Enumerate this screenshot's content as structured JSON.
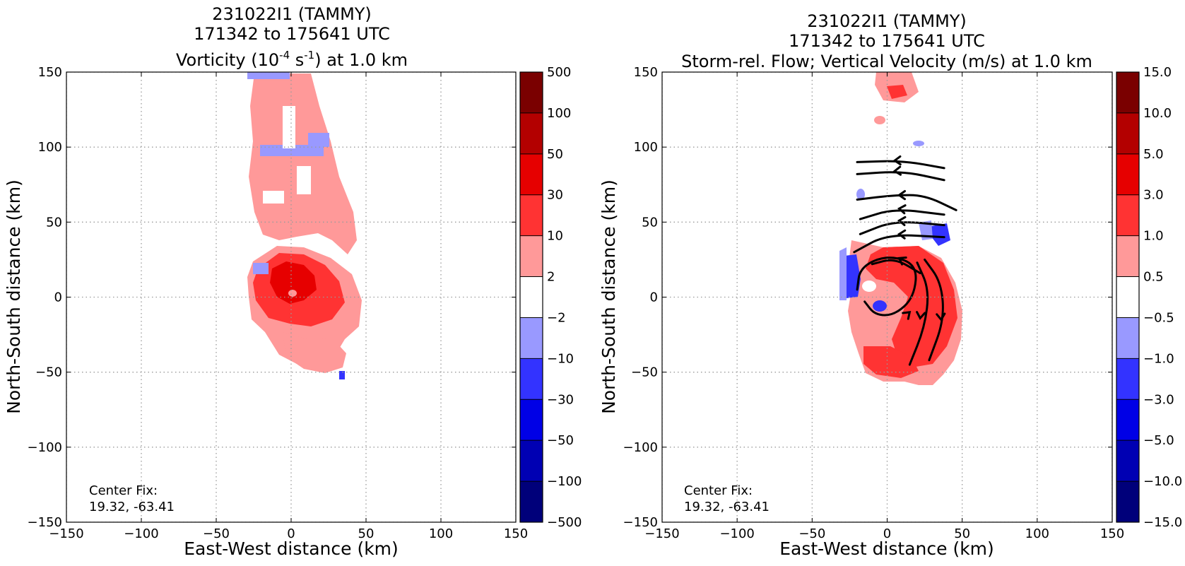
{
  "chart_data": [
    {
      "type": "heatmap",
      "title_lines": [
        "231022I1 (TAMMY)",
        "171342 to 175641 UTC"
      ],
      "title_var": {
        "pre": "Vorticity (10",
        "sup1": "-4",
        "mid": " s",
        "sup2": "-1",
        "post": ") at 1.0 km"
      },
      "xlabel": "East-West distance (km)",
      "ylabel": "North-South distance (km)",
      "xlim": [
        -150,
        150
      ],
      "ylim": [
        -150,
        150
      ],
      "xticks": [
        -150,
        -100,
        -50,
        0,
        50,
        100,
        150
      ],
      "yticks": [
        -150,
        -100,
        -50,
        0,
        50,
        100,
        150
      ],
      "grid": true,
      "annotation": [
        "Center Fix:",
        "19.32, -63.41"
      ],
      "colorbar": {
        "labels": [
          "500",
          "100",
          "50",
          "30",
          "10",
          "2",
          "−2",
          "−10",
          "−30",
          "−50",
          "−100",
          "−500"
        ],
        "colors": [
          "#7a0000",
          "#b30000",
          "#e60000",
          "#ff3333",
          "#ff9999",
          "#ffffff",
          "#9999ff",
          "#3333ff",
          "#0000e6",
          "#0000b3",
          "#00007a"
        ]
      },
      "field_patches": [
        {
          "x": -2,
          "y": 5,
          "rx": 30,
          "ry": 22,
          "level": "10 to 30"
        },
        {
          "x": 0,
          "y": 5,
          "rx": 16,
          "ry": 14,
          "level": "30 to 50"
        },
        {
          "x": 15,
          "y": 115,
          "rx": 16,
          "ry": 35,
          "level": "2 to 10"
        },
        {
          "x": 3,
          "y": 60,
          "rx": 20,
          "ry": 30,
          "level": "2 to 10"
        },
        {
          "x": 15,
          "y": -35,
          "rx": 18,
          "ry": 12,
          "level": "2 to 10"
        },
        {
          "x": 10,
          "y": 98,
          "rx": 15,
          "ry": 4,
          "level": "-10 to -2"
        },
        {
          "x": 0,
          "y": 145,
          "rx": 12,
          "ry": 4,
          "level": "-10 to -2"
        }
      ]
    },
    {
      "type": "heatmap",
      "title_lines": [
        "231022I1 (TAMMY)",
        "171342 to 175641 UTC"
      ],
      "title_var": {
        "pre": "Storm-rel. Flow; Vertical Velocity (m/s) at 1.0 km",
        "sup1": "",
        "mid": "",
        "sup2": "",
        "post": ""
      },
      "xlabel": "East-West distance (km)",
      "ylabel": "North-South distance (km)",
      "xlim": [
        -150,
        150
      ],
      "ylim": [
        -150,
        150
      ],
      "xticks": [
        -150,
        -100,
        -50,
        0,
        50,
        100,
        150
      ],
      "yticks": [
        -150,
        -100,
        -50,
        0,
        50,
        100,
        150
      ],
      "grid": true,
      "annotation": [
        "Center Fix:",
        "19.32, -63.41"
      ],
      "colorbar": {
        "labels": [
          "15.0",
          "10.0",
          "5.0",
          "3.0",
          "1.0",
          "0.5",
          "−0.5",
          "−1.0",
          "−3.0",
          "−5.0",
          "−10.0",
          "−15.0"
        ],
        "colors": [
          "#7a0000",
          "#b30000",
          "#e60000",
          "#ff3333",
          "#ff9999",
          "#ffffff",
          "#9999ff",
          "#3333ff",
          "#0000e6",
          "#0000b3",
          "#00007a"
        ]
      },
      "field_patches": [
        {
          "x": 15,
          "y": 0,
          "rx": 30,
          "ry": 28,
          "level": "1.0 to 3.0"
        },
        {
          "x": 25,
          "y": -30,
          "rx": 22,
          "ry": 16,
          "level": "1.0 to 3.0"
        },
        {
          "x": -22,
          "y": 15,
          "rx": 7,
          "ry": 14,
          "level": "-3.0 to -1.0"
        },
        {
          "x": 38,
          "y": 40,
          "rx": 6,
          "ry": 6,
          "level": "-3.0 to -1.0"
        },
        {
          "x": 10,
          "y": 140,
          "rx": 10,
          "ry": 10,
          "level": "0.5 to 1.0"
        },
        {
          "x": -15,
          "y": 65,
          "rx": 6,
          "ry": 8,
          "level": "-1.0 to -0.5"
        }
      ],
      "streamlines": [
        {
          "points": [
            [
              -20,
              90
            ],
            [
              10,
              91
            ],
            [
              38,
              86
            ]
          ],
          "arrow_at": [
            5,
            91
          ]
        },
        {
          "points": [
            [
              -20,
              82
            ],
            [
              10,
              84
            ],
            [
              38,
              78
            ]
          ],
          "arrow_at": [
            5,
            84
          ]
        },
        {
          "points": [
            [
              -20,
              65
            ],
            [
              5,
              68
            ],
            [
              25,
              68
            ],
            [
              46,
              58
            ]
          ],
          "arrow_at": [
            8,
            68
          ]
        },
        {
          "points": [
            [
              -18,
              52
            ],
            [
              5,
              59
            ],
            [
              38,
              55
            ]
          ],
          "arrow_at": [
            8,
            59
          ]
        },
        {
          "points": [
            [
              -18,
              42
            ],
            [
              5,
              51
            ],
            [
              38,
              48
            ]
          ],
          "arrow_at": [
            8,
            51
          ]
        },
        {
          "points": [
            [
              -22,
              30
            ],
            [
              0,
              42
            ],
            [
              38,
              40
            ]
          ],
          "arrow_at": [
            8,
            42
          ]
        },
        {
          "points": [
            [
              -20,
              5
            ],
            [
              -18,
              20
            ],
            [
              0,
              28
            ],
            [
              20,
              22
            ],
            [
              18,
              0
            ],
            [
              5,
              -12
            ],
            [
              -8,
              -12
            ],
            [
              -15,
              -3
            ]
          ],
          "arrow_at": [
            15,
            -10
          ]
        },
        {
          "points": [
            [
              15,
              -45
            ],
            [
              25,
              -20
            ],
            [
              28,
              5
            ],
            [
              20,
              23
            ]
          ],
          "arrow_at": [
            22,
            -14
          ]
        },
        {
          "points": [
            [
              28,
              -42
            ],
            [
              38,
              -15
            ],
            [
              36,
              10
            ],
            [
              25,
              25
            ]
          ],
          "arrow_at": [
            36,
            -15
          ]
        },
        {
          "points": [
            [
              -10,
              22
            ],
            [
              5,
              26
            ],
            [
              22,
              16
            ]
          ],
          "arrow_at": [
            8,
            26
          ]
        }
      ]
    }
  ]
}
